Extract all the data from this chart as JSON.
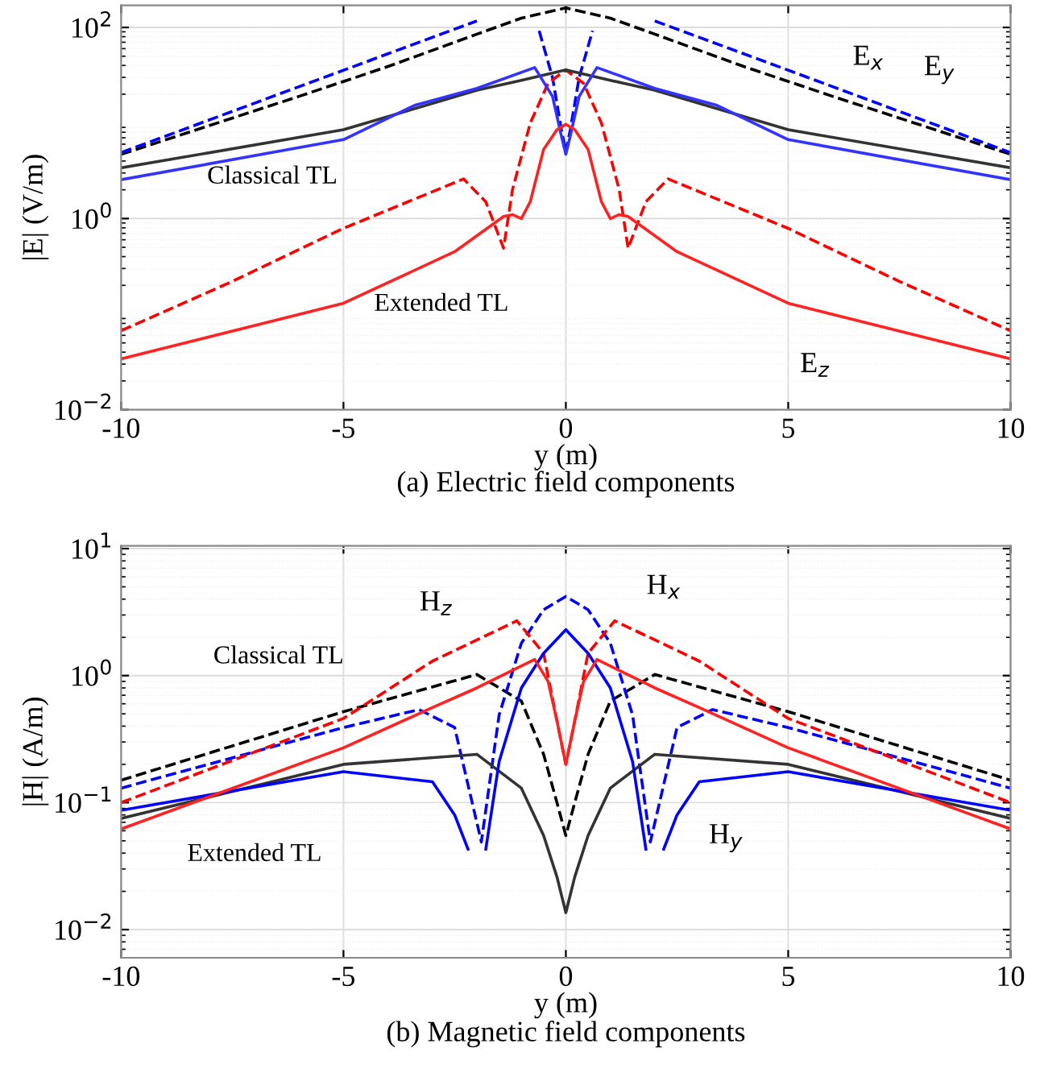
{
  "chart_data": [
    {
      "type": "line",
      "title": "(a) Electric field components",
      "xlabel": "y (m)",
      "ylabel": "|E| (V/m)",
      "log": "y",
      "grid": true,
      "xlim": [
        -10,
        10
      ],
      "xticks": [
        -10,
        -5,
        0,
        5,
        10
      ],
      "ylim": [
        0.01,
        170
      ],
      "yticks": [
        {
          "value": 0.01,
          "label": "10$^{−2}$"
        },
        {
          "value": 1,
          "label": "10$^{0}$"
        },
        {
          "value": 100,
          "label": "10$^{2}$"
        }
      ],
      "series": [
        {
          "color": "#000000",
          "line_style": "dashed",
          "x": [
            -10,
            -6,
            -4,
            -2,
            -1,
            0,
            1,
            2,
            4,
            6,
            10
          ],
          "values": [
            4.7,
            19,
            39,
            85,
            125,
            160,
            125,
            85,
            39,
            19,
            4.7
          ]
        },
        {
          "color": "#0000ff",
          "line_style": "dashed",
          "x": [
            -10,
            -6,
            -4,
            -2,
            -1.2,
            -0.6,
            -0.3,
            -0.1,
            0,
            0.1,
            0.3,
            0.6,
            1.2,
            2,
            4,
            6,
            10
          ],
          "values": [
            4.9,
            24,
            53,
            117,
            null,
            92,
            30,
            8.5,
            5,
            8.5,
            30,
            92,
            null,
            117,
            53,
            24,
            4.9
          ]
        },
        {
          "color": "#ff0000",
          "line_style": "dashed",
          "x": [
            -10,
            -7.5,
            -5,
            -2.3,
            -1.8,
            -1.4,
            -1.2,
            -0.8,
            -0.4,
            0,
            0.4,
            0.8,
            1.2,
            1.4,
            1.8,
            2.3,
            5,
            7.5,
            10
          ],
          "values": [
            0.067,
            0.22,
            0.79,
            2.6,
            1.5,
            0.49,
            2.0,
            10,
            26,
            36,
            26,
            10,
            2.0,
            0.49,
            1.5,
            2.6,
            0.79,
            0.22,
            0.067
          ]
        },
        {
          "color": "#333333",
          "line_style": "solid",
          "x": [
            -10,
            -5,
            -2,
            -1,
            0,
            1,
            2,
            5,
            10
          ],
          "values": [
            3.4,
            8.5,
            22,
            28,
            36,
            28,
            22,
            8.5,
            3.4
          ]
        },
        {
          "color": "#3333ff",
          "line_style": "solid",
          "x": [
            -10,
            -5,
            -3.4,
            -2,
            -0.7,
            -0.3,
            -0.1,
            0,
            0.1,
            0.3,
            0.7,
            2,
            3.4,
            5,
            10
          ],
          "values": [
            2.55,
            6.7,
            15.3,
            23,
            38,
            19,
            7.3,
            4.7,
            7.3,
            19,
            38,
            23,
            15.3,
            6.7,
            2.55
          ]
        },
        {
          "color": "#ff2222",
          "line_style": "solid",
          "x": [
            -10,
            -5,
            -2.5,
            -1.4,
            -1.2,
            -1.0,
            -0.8,
            -0.5,
            -0.2,
            0,
            0.2,
            0.5,
            0.8,
            1.0,
            1.2,
            1.4,
            2.5,
            5,
            10
          ],
          "values": [
            0.034,
            0.13,
            0.45,
            1.05,
            1.1,
            1.0,
            1.5,
            5.3,
            8.5,
            9.7,
            8.5,
            5.3,
            1.5,
            1.0,
            1.1,
            1.05,
            0.45,
            0.13,
            0.034
          ]
        }
      ],
      "annotations": [
        "Classical TL",
        "Extended TL",
        "E$_{x}$",
        "E$_{y}$",
        "E$_{z}$"
      ]
    },
    {
      "type": "line",
      "title": "(b) Magnetic field components",
      "xlabel": "y (m)",
      "ylabel": "|H| (A/m)",
      "log": "y",
      "grid": true,
      "xlim": [
        -10,
        10
      ],
      "xticks": [
        -10,
        -5,
        0,
        5,
        10
      ],
      "ylim": [
        0.006,
        10.5
      ],
      "yticks": [
        {
          "value": 0.01,
          "label": "10$^{−2}$"
        },
        {
          "value": 0.1,
          "label": "10$^{−1}$"
        },
        {
          "value": 1,
          "label": "10$^{0}$"
        },
        {
          "value": 10,
          "label": "10$^{1}$"
        }
      ],
      "series": [
        {
          "color": "#000000",
          "line_style": "dashed",
          "x": [
            -10,
            -5,
            -2,
            -1,
            -0.5,
            -0.2,
            0,
            0.2,
            0.5,
            1,
            2,
            5,
            10
          ],
          "values": [
            0.15,
            0.52,
            1.02,
            0.63,
            0.24,
            0.1,
            0.055,
            0.1,
            0.24,
            0.63,
            1.02,
            0.52,
            0.15
          ]
        },
        {
          "color": "#0000ff",
          "line_style": "dashed",
          "x": [
            -10,
            -5,
            -3.3,
            -2.5,
            -1.9,
            -1.5,
            -1,
            -0.5,
            0,
            0.5,
            1,
            1.5,
            1.9,
            2.5,
            3.3,
            5,
            10
          ],
          "values": [
            0.13,
            0.39,
            0.54,
            0.39,
            0.049,
            0.49,
            1.8,
            3.3,
            4.2,
            3.3,
            1.8,
            0.49,
            0.049,
            0.39,
            0.54,
            0.39,
            0.13
          ]
        },
        {
          "color": "#ff0000",
          "line_style": "dashed",
          "x": [
            -10,
            -5,
            -3,
            -1.1,
            -0.5,
            -0.2,
            0,
            0.2,
            0.5,
            1.1,
            3,
            5,
            10
          ],
          "values": [
            0.1,
            0.46,
            1.3,
            2.7,
            1.5,
            0.44,
            0.2,
            0.44,
            1.5,
            2.7,
            1.3,
            0.46,
            0.1
          ]
        },
        {
          "color": "#333333",
          "line_style": "solid",
          "x": [
            -10,
            -5,
            -2,
            -1,
            -0.5,
            -0.2,
            0,
            0.2,
            0.5,
            1,
            2,
            5,
            10
          ],
          "values": [
            0.075,
            0.2,
            0.24,
            0.13,
            0.055,
            0.026,
            0.0136,
            0.026,
            0.055,
            0.13,
            0.24,
            0.2,
            0.075
          ]
        },
        {
          "color": "#0000ff",
          "line_style": "solid",
          "x": [
            -10,
            -5,
            -3,
            -2.5,
            -2.2,
            -2,
            -1.8,
            -1.5,
            -1,
            -0.5,
            0,
            0.5,
            1,
            1.5,
            1.8,
            2,
            2.2,
            2.5,
            3,
            5,
            10
          ],
          "values": [
            0.087,
            0.175,
            0.146,
            0.08,
            0.043,
            null,
            0.043,
            0.21,
            0.8,
            1.5,
            2.3,
            1.5,
            0.8,
            0.21,
            0.043,
            null,
            0.043,
            0.08,
            0.146,
            0.175,
            0.087
          ]
        },
        {
          "color": "#ff2222",
          "line_style": "solid",
          "x": [
            -10,
            -5,
            -3,
            -2,
            -0.7,
            -0.4,
            -0.2,
            0,
            0.2,
            0.4,
            0.7,
            2,
            3,
            5,
            10
          ],
          "values": [
            0.062,
            0.27,
            0.56,
            0.8,
            1.34,
            0.9,
            0.44,
            0.2,
            0.44,
            0.9,
            1.34,
            0.8,
            0.56,
            0.27,
            0.062
          ]
        }
      ],
      "annotations": [
        "Classical TL",
        "Extended TL",
        "H$_{z}$",
        "H$_{x}$",
        "H$_{y}$"
      ]
    }
  ]
}
